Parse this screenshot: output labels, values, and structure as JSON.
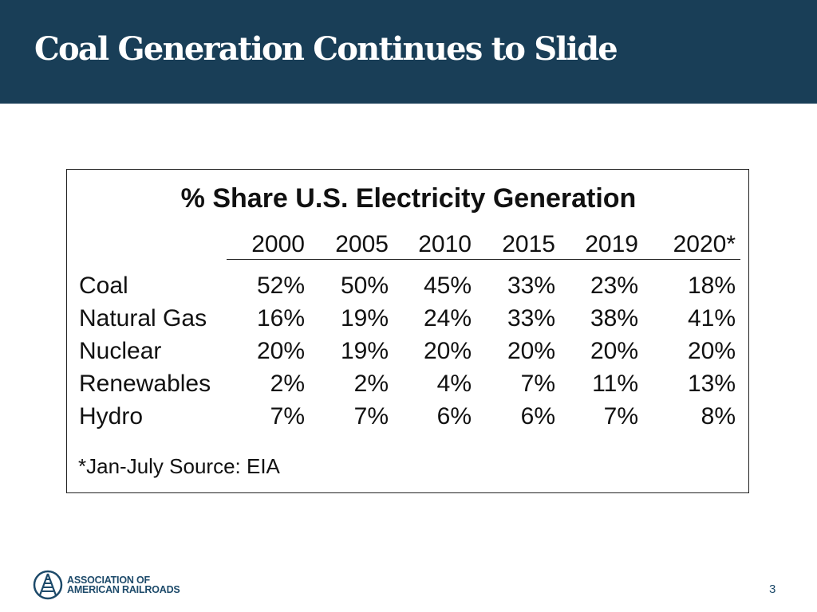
{
  "slide": {
    "title": "Coal Generation Continues to Slide",
    "page_number": "3"
  },
  "table": {
    "title": "% Share U.S. Electricity Generation",
    "columns": [
      "2000",
      "2005",
      "2010",
      "2015",
      "2019",
      "2020*"
    ],
    "rows": [
      {
        "label": "Coal",
        "values": [
          "52%",
          "50%",
          "45%",
          "33%",
          "23%",
          "18%"
        ]
      },
      {
        "label": "Natural Gas",
        "values": [
          "16%",
          "19%",
          "24%",
          "33%",
          "38%",
          "41%"
        ]
      },
      {
        "label": "Nuclear",
        "values": [
          "20%",
          "19%",
          "20%",
          "20%",
          "20%",
          "20%"
        ]
      },
      {
        "label": "Renewables",
        "values": [
          "2%",
          "2%",
          "4%",
          "7%",
          "11%",
          "13%"
        ]
      },
      {
        "label": "Hydro",
        "values": [
          "7%",
          "7%",
          "6%",
          "6%",
          "7%",
          "8%"
        ]
      }
    ],
    "footnote": "*Jan-July    Source: EIA"
  },
  "logo": {
    "line1": "ASSOCIATION OF",
    "line2": "AMERICAN RAILROADS",
    "icon": "railroad-logo-icon",
    "color": "#1d4a6a"
  },
  "colors": {
    "header_bg": "#193e57",
    "title_text": "#ffffff"
  }
}
